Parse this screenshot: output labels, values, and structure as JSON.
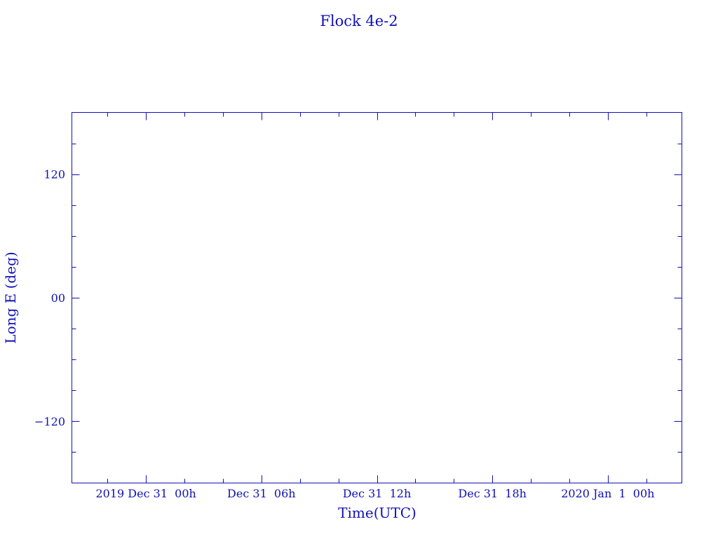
{
  "chart_data": {
    "type": "line",
    "title": "Flock 4e-2",
    "xlabel": "Time(UTC)",
    "ylabel": "Long E (deg)",
    "x_major_ticks": [
      "2019-12-31T00:00",
      "2019-12-31T06:00",
      "2019-12-31T12:00",
      "2019-12-31T18:00",
      "2020-01-01T00:00"
    ],
    "x_tick_labels": [
      "2019 Dec 31  00h",
      "Dec 31  06h",
      "Dec 31  12h",
      "Dec 31  18h",
      "2020 Jan  1  00h"
    ],
    "x_minor_step_hours": 2,
    "xlim": [
      "2019-12-30T20:09",
      "2020-01-01T03:51"
    ],
    "y_major_ticks": [
      120,
      0,
      -120
    ],
    "y_tick_labels": [
      "120",
      "00",
      "−120"
    ],
    "y_minor_step": 30,
    "ylim": [
      -180,
      180
    ],
    "grid": false,
    "series": [],
    "color": "#1010b8"
  }
}
